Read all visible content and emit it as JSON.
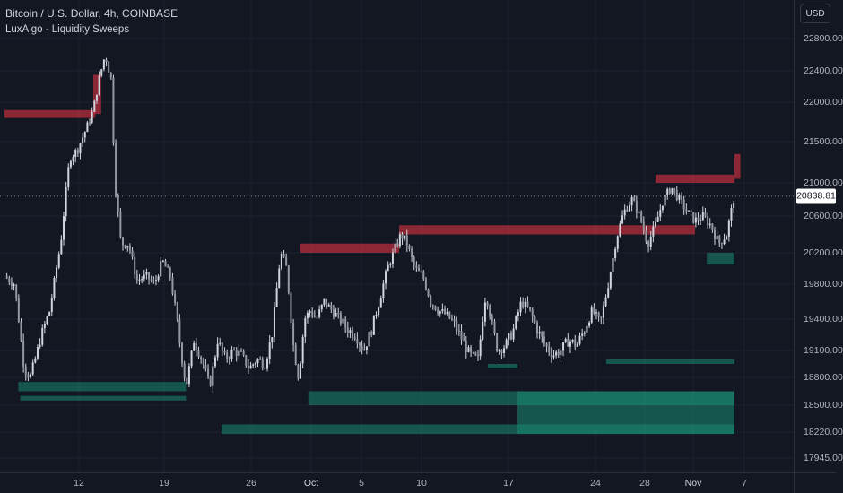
{
  "header": {
    "symbol_title": "Bitcoin / U.S. Dollar, 4h, COINBASE",
    "indicator_title": "LuxAlgo - Liquidity Sweeps"
  },
  "price_axis": {
    "currency": "USD",
    "ticks": [
      "22800.00",
      "22400.00",
      "22000.00",
      "21500.00",
      "21000.00",
      "20600.00",
      "20200.00",
      "19800.00",
      "19400.00",
      "19100.00",
      "18800.00",
      "18500.00",
      "18220.00",
      "17945.00"
    ],
    "current_price": "20838.81"
  },
  "time_axis": {
    "ticks": [
      "12",
      "19",
      "26",
      "Oct",
      "5",
      "10",
      "17",
      "24",
      "28",
      "Nov",
      "7"
    ]
  },
  "colors": {
    "background": "#131722",
    "candle": "#d1d4dc",
    "bear_zone": "#c0303f",
    "bull_zone": "#1a8a72",
    "grid": "#1e222d"
  },
  "chart_data": {
    "type": "candlestick",
    "symbol": "Bitcoin / U.S. Dollar",
    "interval": "4h",
    "exchange": "COINBASE",
    "indicator": "LuxAlgo - Liquidity Sweeps",
    "y_ticks": [
      22800,
      22400,
      22000,
      21500,
      21000,
      20600,
      20200,
      19800,
      19400,
      19100,
      18800,
      18500,
      18220,
      17945
    ],
    "x_ticks": [
      "12",
      "19",
      "26",
      "Oct",
      "5",
      "10",
      "17",
      "24",
      "28",
      "Nov",
      "7"
    ],
    "price_path": [
      {
        "t": 0.0,
        "p": 19900
      },
      {
        "t": 0.5,
        "p": 19800
      },
      {
        "t": 1.0,
        "p": 18900
      },
      {
        "t": 1.3,
        "p": 18800
      },
      {
        "t": 1.8,
        "p": 19200
      },
      {
        "t": 2.3,
        "p": 19500
      },
      {
        "t": 2.9,
        "p": 20400
      },
      {
        "t": 3.3,
        "p": 21300
      },
      {
        "t": 3.7,
        "p": 21400
      },
      {
        "t": 4.2,
        "p": 21700
      },
      {
        "t": 4.5,
        "p": 21900
      },
      {
        "t": 4.8,
        "p": 22300
      },
      {
        "t": 5.1,
        "p": 22600
      },
      {
        "t": 5.4,
        "p": 22300
      },
      {
        "t": 5.6,
        "p": 21000
      },
      {
        "t": 5.9,
        "p": 20300
      },
      {
        "t": 6.3,
        "p": 20300
      },
      {
        "t": 6.7,
        "p": 19850
      },
      {
        "t": 7.2,
        "p": 19900
      },
      {
        "t": 7.6,
        "p": 19800
      },
      {
        "t": 8.0,
        "p": 20100
      },
      {
        "t": 8.4,
        "p": 19900
      },
      {
        "t": 8.8,
        "p": 19300
      },
      {
        "t": 9.2,
        "p": 18700
      },
      {
        "t": 9.6,
        "p": 19200
      },
      {
        "t": 10.0,
        "p": 19000
      },
      {
        "t": 10.4,
        "p": 18700
      },
      {
        "t": 10.8,
        "p": 19200
      },
      {
        "t": 11.2,
        "p": 19000
      },
      {
        "t": 11.6,
        "p": 19100
      },
      {
        "t": 12.0,
        "p": 19050
      },
      {
        "t": 12.4,
        "p": 18900
      },
      {
        "t": 12.8,
        "p": 19000
      },
      {
        "t": 13.2,
        "p": 18950
      },
      {
        "t": 13.6,
        "p": 19300
      },
      {
        "t": 14.0,
        "p": 20200
      },
      {
        "t": 14.3,
        "p": 20000
      },
      {
        "t": 14.6,
        "p": 19200
      },
      {
        "t": 14.9,
        "p": 18800
      },
      {
        "t": 15.2,
        "p": 19400
      },
      {
        "t": 15.5,
        "p": 19500
      },
      {
        "t": 15.8,
        "p": 19400
      },
      {
        "t": 16.2,
        "p": 19600
      },
      {
        "t": 16.6,
        "p": 19500
      },
      {
        "t": 17.0,
        "p": 19400
      },
      {
        "t": 17.4,
        "p": 19300
      },
      {
        "t": 17.8,
        "p": 19250
      },
      {
        "t": 18.2,
        "p": 19100
      },
      {
        "t": 18.6,
        "p": 19300
      },
      {
        "t": 19.0,
        "p": 19600
      },
      {
        "t": 19.4,
        "p": 20000
      },
      {
        "t": 19.8,
        "p": 20250
      },
      {
        "t": 20.1,
        "p": 20400
      },
      {
        "t": 20.4,
        "p": 20300
      },
      {
        "t": 20.8,
        "p": 20000
      },
      {
        "t": 21.2,
        "p": 19900
      },
      {
        "t": 21.6,
        "p": 19600
      },
      {
        "t": 22.0,
        "p": 19500
      },
      {
        "t": 22.4,
        "p": 19450
      },
      {
        "t": 22.8,
        "p": 19350
      },
      {
        "t": 23.2,
        "p": 19200
      },
      {
        "t": 23.6,
        "p": 19050
      },
      {
        "t": 24.0,
        "p": 19000
      },
      {
        "t": 24.4,
        "p": 19700
      },
      {
        "t": 24.7,
        "p": 19350
      },
      {
        "t": 25.0,
        "p": 19100
      },
      {
        "t": 25.4,
        "p": 19150
      },
      {
        "t": 25.8,
        "p": 19300
      },
      {
        "t": 26.2,
        "p": 19600
      },
      {
        "t": 26.6,
        "p": 19500
      },
      {
        "t": 27.0,
        "p": 19300
      },
      {
        "t": 27.4,
        "p": 19150
      },
      {
        "t": 27.8,
        "p": 19050
      },
      {
        "t": 28.2,
        "p": 19100
      },
      {
        "t": 28.6,
        "p": 19200
      },
      {
        "t": 29.0,
        "p": 19150
      },
      {
        "t": 29.4,
        "p": 19300
      },
      {
        "t": 29.8,
        "p": 19500
      },
      {
        "t": 30.2,
        "p": 19350
      },
      {
        "t": 30.6,
        "p": 19800
      },
      {
        "t": 31.0,
        "p": 20350
      },
      {
        "t": 31.4,
        "p": 20650
      },
      {
        "t": 31.8,
        "p": 20800
      },
      {
        "t": 32.2,
        "p": 20600
      },
      {
        "t": 32.6,
        "p": 20300
      },
      {
        "t": 33.0,
        "p": 20500
      },
      {
        "t": 33.4,
        "p": 20800
      },
      {
        "t": 33.8,
        "p": 20950
      },
      {
        "t": 34.2,
        "p": 20800
      },
      {
        "t": 34.6,
        "p": 20650
      },
      {
        "t": 35.0,
        "p": 20550
      },
      {
        "t": 35.4,
        "p": 20600
      },
      {
        "t": 35.8,
        "p": 20500
      },
      {
        "t": 36.2,
        "p": 20300
      },
      {
        "t": 36.6,
        "p": 20400
      },
      {
        "t": 37.0,
        "p": 20838.81
      }
    ],
    "zones": [
      {
        "kind": "bearish",
        "t0": 0.0,
        "t1": 4.6,
        "p0": 21800,
        "p1": 21900
      },
      {
        "kind": "bearish",
        "t0": 4.5,
        "t1": 4.9,
        "p0": 21850,
        "p1": 22350
      },
      {
        "kind": "bearish",
        "t0": 15.0,
        "t1": 20.0,
        "p0": 20200,
        "p1": 20300
      },
      {
        "kind": "bearish",
        "t0": 20.0,
        "t1": 35.0,
        "p0": 20400,
        "p1": 20500
      },
      {
        "kind": "bearish",
        "t0": 37.0,
        "t1": 37.3,
        "p0": 21050,
        "p1": 21350
      },
      {
        "kind": "bearish",
        "t0": 33.0,
        "t1": 37.0,
        "p0": 21000,
        "p1": 21100
      },
      {
        "kind": "bullish",
        "t0": 0.7,
        "t1": 9.2,
        "p0": 18650,
        "p1": 18750
      },
      {
        "kind": "bullish",
        "t0": 0.8,
        "t1": 9.2,
        "p0": 18550,
        "p1": 18600
      },
      {
        "kind": "bullish",
        "t0": 11.0,
        "t1": 37.0,
        "p0": 18200,
        "p1": 18300
      },
      {
        "kind": "bullish",
        "t0": 15.4,
        "t1": 37.0,
        "p0": 18500,
        "p1": 18650
      },
      {
        "kind": "bullish",
        "t0": 26.0,
        "t1": 37.0,
        "p0": 18200,
        "p1": 18650
      },
      {
        "kind": "bullish",
        "t0": 24.5,
        "t1": 26.0,
        "p0": 18900,
        "p1": 18950
      },
      {
        "kind": "bullish",
        "t0": 30.5,
        "t1": 37.0,
        "p0": 18950,
        "p1": 19000
      },
      {
        "kind": "bullish",
        "t0": 35.6,
        "t1": 37.0,
        "p0": 20050,
        "p1": 20200
      }
    ],
    "current_price": 20838.81
  }
}
